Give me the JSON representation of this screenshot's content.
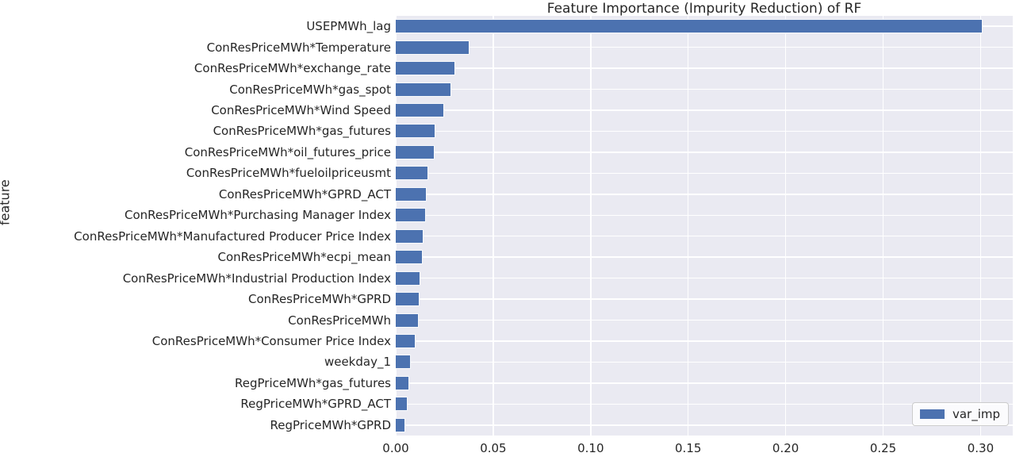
{
  "chart_data": {
    "type": "bar",
    "orientation": "horizontal",
    "title": "Feature Importance (Impurity Reduction) of RF",
    "xlabel": "",
    "ylabel": "feature",
    "legend": {
      "label": "var_imp",
      "position": "lower right"
    },
    "grid": true,
    "xlim": [
      0,
      0.3165
    ],
    "xticks": [
      0.0,
      0.05,
      0.1,
      0.15,
      0.2,
      0.25,
      0.3
    ],
    "xtick_labels": [
      "0.00",
      "0.05",
      "0.10",
      "0.15",
      "0.20",
      "0.25",
      "0.30"
    ],
    "categories": [
      "USEPMWh_lag",
      "ConResPriceMWh*Temperature",
      "ConResPriceMWh*exchange_rate",
      "ConResPriceMWh*gas_spot",
      "ConResPriceMWh*Wind Speed",
      "ConResPriceMWh*gas_futures",
      "ConResPriceMWh*oil_futures_price",
      "ConResPriceMWh*fueloilpriceusmt",
      "ConResPriceMWh*GPRD_ACT",
      "ConResPriceMWh*Purchasing Manager Index",
      "ConResPriceMWh*Manufactured Producer Price Index",
      "ConResPriceMWh*ecpi_mean",
      "ConResPriceMWh*Industrial Production Index",
      "ConResPriceMWh*GPRD",
      "ConResPriceMWh",
      "ConResPriceMWh*Consumer Price Index",
      "weekday_1",
      "RegPriceMWh*gas_futures",
      "RegPriceMWh*GPRD_ACT",
      "RegPriceMWh*GPRD"
    ],
    "series": [
      {
        "name": "var_imp",
        "values": [
          0.301,
          0.038,
          0.0305,
          0.0284,
          0.0249,
          0.0205,
          0.02,
          0.0168,
          0.0158,
          0.0156,
          0.0141,
          0.0139,
          0.0126,
          0.0122,
          0.0117,
          0.0102,
          0.0077,
          0.0068,
          0.006,
          0.0048
        ]
      }
    ],
    "colors": {
      "bar": "#4c72b0",
      "plot_background": "#eaeaf2",
      "gridline": "#ffffff",
      "text": "#262626"
    }
  }
}
